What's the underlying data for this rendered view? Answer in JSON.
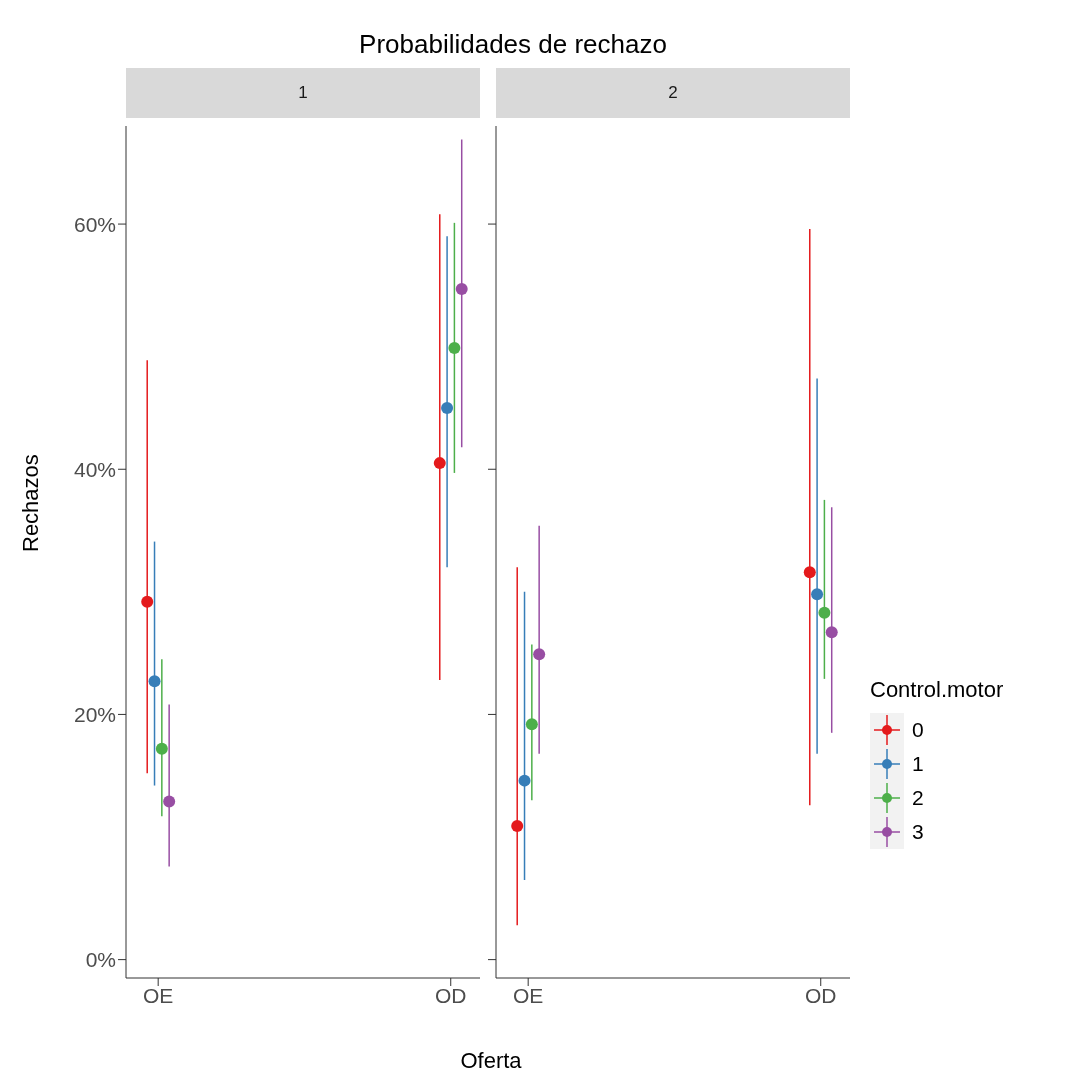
{
  "chart_data": [
    {
      "type": "scatter",
      "title": "Probabilidades de rechazo",
      "subtitle": "1",
      "xlabel": "Oferta",
      "ylabel": "Rechazos",
      "categories": [
        "OE",
        "OD"
      ],
      "ylim": [
        -1.5,
        68
      ],
      "yticks": [
        {
          "value": 0,
          "label": "0%"
        },
        {
          "value": 20,
          "label": "20%"
        },
        {
          "value": 40,
          "label": "40%"
        },
        {
          "value": 60,
          "label": "60%"
        }
      ],
      "grid": false,
      "marker": "circle",
      "legend": false,
      "series": [
        {
          "color": "#e41a1c",
          "values": [
            29.2,
            40.5
          ],
          "errors": [
            [
              15.2,
              48.9
            ],
            [
              22.8,
              60.8
            ]
          ]
        },
        {
          "color": "#377eb8",
          "values": [
            22.7,
            45.0
          ],
          "errors": [
            [
              14.2,
              34.1
            ],
            [
              32.0,
              59.0
            ]
          ]
        },
        {
          "color": "#4daf4a",
          "values": [
            17.2,
            49.9
          ],
          "errors": [
            [
              11.7,
              24.5
            ],
            [
              39.7,
              60.1
            ]
          ]
        },
        {
          "color": "#984ea3",
          "values": [
            12.9,
            54.7
          ],
          "errors": [
            [
              7.6,
              20.8
            ],
            [
              41.8,
              66.9
            ]
          ]
        }
      ]
    },
    {
      "type": "scatter",
      "subtitle": "2",
      "categories": [
        "OE",
        "OD"
      ],
      "ylim": [
        -1.5,
        68
      ],
      "yticks": [
        {
          "value": 0,
          "label": null
        },
        {
          "value": 20,
          "label": null
        },
        {
          "value": 40,
          "label": null
        },
        {
          "value": 60,
          "label": null
        }
      ],
      "tick_labels": "x",
      "grid": false,
      "marker": "circle",
      "legend": "right",
      "legend_title": "Control.motor",
      "series": [
        {
          "name": "0",
          "color": "#e41a1c",
          "values": [
            10.9,
            31.6
          ],
          "errors": [
            [
              2.8,
              32.0
            ],
            [
              12.6,
              59.6
            ]
          ]
        },
        {
          "name": "1",
          "color": "#377eb8",
          "values": [
            14.6,
            29.8
          ],
          "errors": [
            [
              6.5,
              30.0
            ],
            [
              16.8,
              47.4
            ]
          ]
        },
        {
          "name": "2",
          "color": "#4daf4a",
          "values": [
            19.2,
            28.3
          ],
          "errors": [
            [
              13.0,
              25.7
            ],
            [
              22.9,
              37.5
            ]
          ]
        },
        {
          "name": "3",
          "color": "#984ea3",
          "values": [
            24.9,
            26.7
          ],
          "errors": [
            [
              16.8,
              35.4
            ],
            [
              18.5,
              36.9
            ]
          ]
        }
      ]
    }
  ]
}
